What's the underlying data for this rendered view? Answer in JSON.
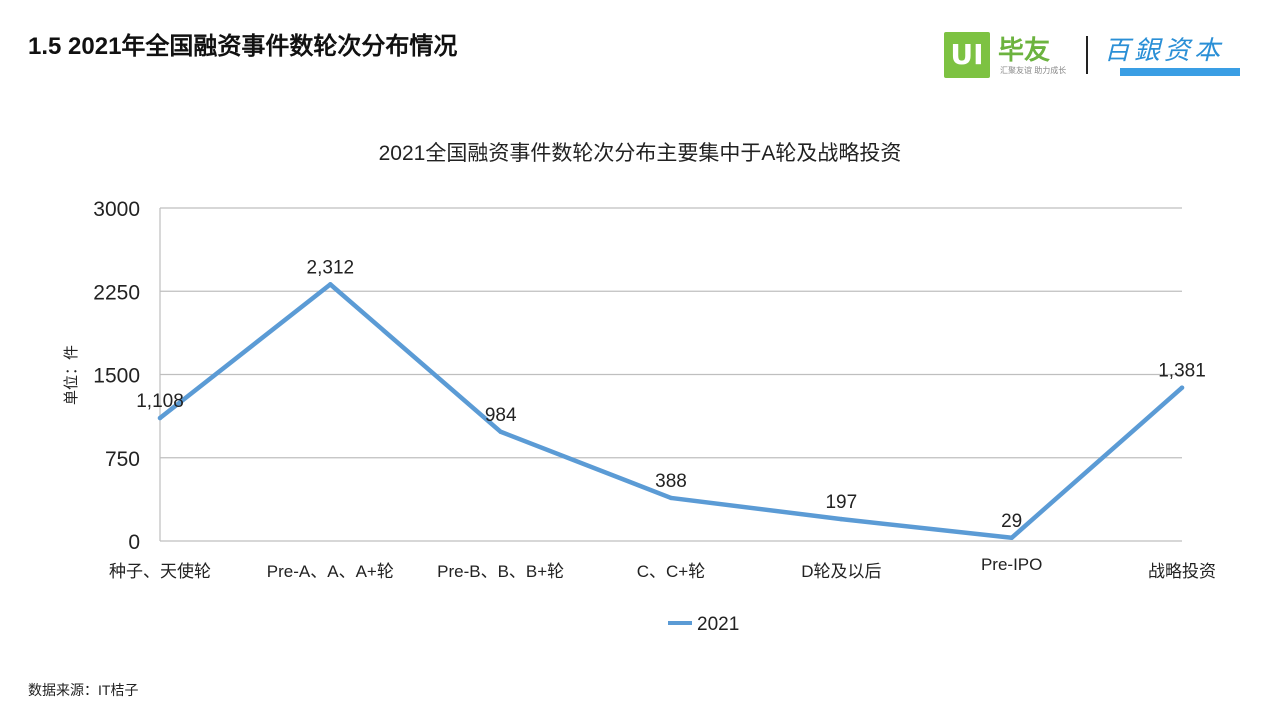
{
  "slide": {
    "title": "1.5 2021年全国融资事件数轮次分布情况",
    "source": "数据来源：IT桔子"
  },
  "logos": {
    "brand1_badge": "UI",
    "brand1_name": "毕友",
    "brand1_slogan": "汇聚友谊  助力成长",
    "brand2_name": "百銀资本"
  },
  "colors": {
    "series": "#5b9bd5",
    "grid": "#bfbfbf",
    "logo_green": "#7dc242",
    "logo_blue": "#2a8fd6"
  },
  "chart_data": {
    "type": "line",
    "title": "2021全国融资事件数轮次分布主要集中于A轮及战略投资",
    "ylabel": "单位：件",
    "xlabel": "",
    "categories": [
      "种子、天使轮",
      "Pre-A、A、A+轮",
      "Pre-B、B、B+轮",
      "C、C+轮",
      "D轮及以后",
      "Pre-IPO",
      "战略投资"
    ],
    "series": [
      {
        "name": "2021",
        "values": [
          1108,
          2312,
          984,
          388,
          197,
          29,
          1381
        ],
        "labels": [
          "1,108",
          "2,312",
          "984",
          "388",
          "197",
          "29",
          "1,381"
        ]
      }
    ],
    "ylim": [
      0,
      3000
    ],
    "yticks": [
      "0",
      "750",
      "1500",
      "2250",
      "3000"
    ],
    "grid": true,
    "legend": "bottom"
  }
}
